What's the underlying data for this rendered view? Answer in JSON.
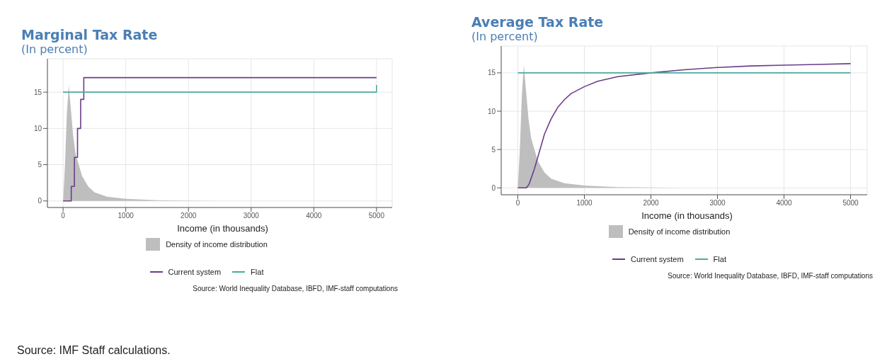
{
  "chart_data": [
    {
      "type": "line",
      "title": "Marginal Tax Rate",
      "subtitle": "(In percent)",
      "xlabel": "Income (in thousands)",
      "xlim": [
        -250,
        5250
      ],
      "xticks": [
        0,
        1000,
        2000,
        3000,
        4000,
        5000
      ],
      "ylim": [
        -0.9,
        19.6
      ],
      "yticks": [
        0,
        5,
        10,
        15
      ],
      "grid": true,
      "legend": "bottom",
      "marker": "none",
      "line_style": "solid",
      "series": [
        {
          "name": "Density of income distribution",
          "type": "area",
          "color": "#bebebe",
          "x": [
            0,
            30,
            60,
            90,
            120,
            160,
            200,
            250,
            300,
            400,
            500,
            700,
            1000,
            1500,
            2500
          ],
          "values": [
            0,
            5,
            12,
            16,
            13,
            9,
            6.5,
            5,
            3.5,
            2,
            1.2,
            0.6,
            0.3,
            0.1,
            0
          ]
        },
        {
          "name": "Current system",
          "type": "step",
          "color": "#6a3d8a",
          "x": [
            0,
            130,
            180,
            230,
            280,
            330,
            5000
          ],
          "values": [
            0,
            2,
            6,
            10,
            14,
            17,
            17
          ]
        },
        {
          "name": "Flat",
          "type": "line",
          "color": "#4daaa0",
          "x": [
            0,
            5000,
            5000
          ],
          "values": [
            15,
            15,
            16
          ]
        }
      ],
      "annotations": [
        "Source: World Inequality Database, IBFD, IMF-staff computations",
        "Source: IMF Staff calculations."
      ]
    },
    {
      "type": "line",
      "title": "Average Tax Rate",
      "subtitle": "(In percent)",
      "xlabel": "Income (in thousands)",
      "xlim": [
        -250,
        5250
      ],
      "xticks": [
        0,
        1000,
        2000,
        3000,
        4000,
        5000
      ],
      "ylim": [
        -0.9,
        18.5
      ],
      "yticks": [
        0,
        5,
        10,
        15
      ],
      "grid": true,
      "legend": "bottom",
      "marker": "none",
      "line_style": "solid",
      "series": [
        {
          "name": "Density of income distribution",
          "type": "area",
          "color": "#bebebe",
          "x": [
            0,
            30,
            60,
            90,
            120,
            160,
            200,
            250,
            300,
            400,
            500,
            700,
            1000,
            1500,
            2500
          ],
          "values": [
            0,
            5,
            12,
            16,
            13,
            9,
            6.5,
            5,
            3.5,
            2,
            1.2,
            0.6,
            0.3,
            0.1,
            0
          ]
        },
        {
          "name": "Current system",
          "type": "line",
          "color": "#6a3d8a",
          "x": [
            0,
            130,
            170,
            250,
            300,
            400,
            500,
            600,
            700,
            800,
            1000,
            1200,
            1500,
            2000,
            2500,
            3000,
            3500,
            4000,
            4500,
            5000
          ],
          "values": [
            0,
            0,
            0.5,
            2.5,
            4,
            7,
            9,
            10.5,
            11.5,
            12.3,
            13.2,
            13.9,
            14.5,
            15,
            15.4,
            15.7,
            15.9,
            16,
            16.1,
            16.2
          ]
        },
        {
          "name": "Flat",
          "type": "line",
          "color": "#4daaa0",
          "x": [
            0,
            5000
          ],
          "values": [
            15,
            15
          ]
        }
      ],
      "annotations": [
        "Source: World Inequality Database, IBFD, IMF-staff computations"
      ]
    }
  ]
}
